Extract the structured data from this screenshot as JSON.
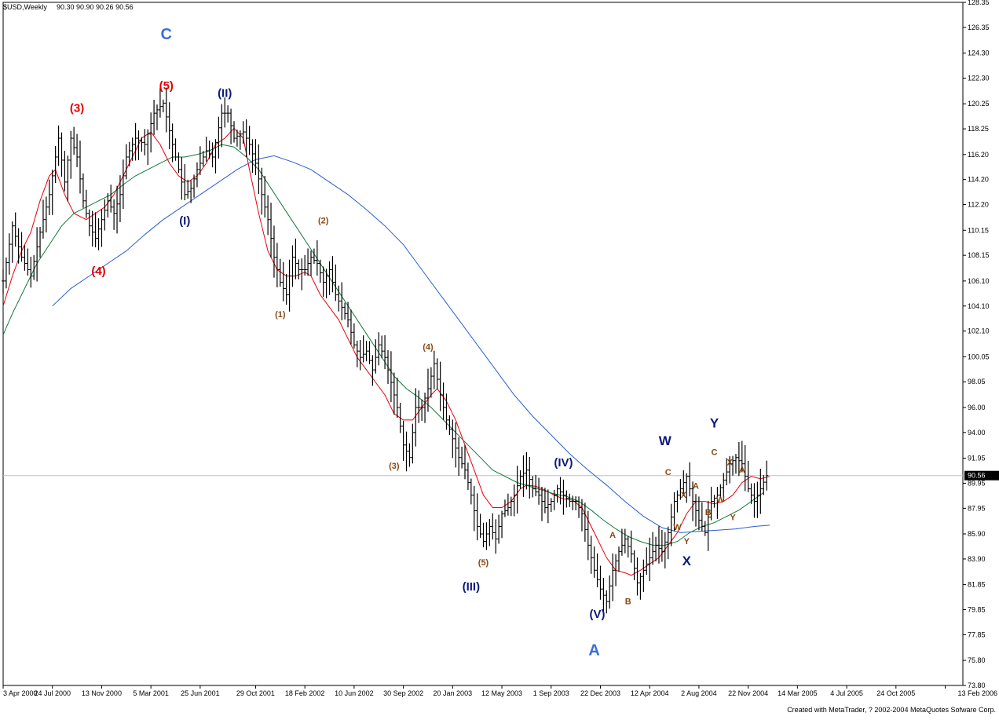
{
  "header": {
    "symbol": "$USD,Weekly",
    "ohlc": "90.30 90.90 90.26 90.56"
  },
  "footer": {
    "credit": "Created with MetaTrader, ? 2002-2004 MetaQuotes Sofware Corp."
  },
  "colors": {
    "bars": "#000000",
    "ma_fast": "#e8000b",
    "ma_mid": "#117a3a",
    "ma_slow": "#2a5fd0",
    "label_red": "#e30000",
    "label_navy": "#0d1a7a",
    "label_brown": "#8b4a12",
    "label_blue": "#3a6fd8",
    "current_price_line": "#c0c0c0"
  },
  "chart_data": {
    "type": "ohlc-bar",
    "timeframe": "Weekly",
    "current_price": 90.56,
    "ylim": [
      73.8,
      128.35
    ],
    "y_ticks": [
      "128.35",
      "126.35",
      "124.30",
      "122.30",
      "120.25",
      "118.25",
      "116.20",
      "114.20",
      "112.20",
      "110.15",
      "108.15",
      "106.10",
      "104.10",
      "102.10",
      "100.05",
      "98.05",
      "96.00",
      "94.00",
      "91.95",
      "89.95",
      "87.95",
      "85.90",
      "83.90",
      "81.85",
      "79.85",
      "77.85",
      "75.80",
      "73.80"
    ],
    "x_ticks": [
      {
        "label": "3 Apr 2000",
        "t": 0
      },
      {
        "label": "24 Jul 2000",
        "t": 16
      },
      {
        "label": "13 Nov 2000",
        "t": 32
      },
      {
        "label": "5 Mar 2001",
        "t": 48
      },
      {
        "label": "25 Jun 2001",
        "t": 64
      },
      {
        "label": "29 Oct 2001",
        "t": 82
      },
      {
        "label": "18 Feb 2002",
        "t": 98
      },
      {
        "label": "10 Jun 2002",
        "t": 114
      },
      {
        "label": "30 Sep 2002",
        "t": 130
      },
      {
        "label": "20 Jan 2003",
        "t": 146
      },
      {
        "label": "12 May 2003",
        "t": 162
      },
      {
        "label": "1 Sep 2003",
        "t": 178
      },
      {
        "label": "22 Dec 2003",
        "t": 194
      },
      {
        "label": "12 Apr 2004",
        "t": 210
      },
      {
        "label": "2 Aug 2004",
        "t": 226
      },
      {
        "label": "22 Nov 2004",
        "t": 242
      },
      {
        "label": "14 Mar 2005",
        "t": 258
      },
      {
        "label": "4 Jul 2005",
        "t": 274
      },
      {
        "label": "24 Oct 2005",
        "t": 290
      },
      {
        "label": "13 Feb 2006",
        "t": 306
      }
    ],
    "close_path": [
      [
        0,
        106.1
      ],
      [
        3,
        110.5
      ],
      [
        6,
        108
      ],
      [
        9,
        106.5
      ],
      [
        12,
        110
      ],
      [
        15,
        113
      ],
      [
        18,
        117.5
      ],
      [
        20,
        114
      ],
      [
        22,
        117.5
      ],
      [
        24,
        116
      ],
      [
        26,
        112.5
      ],
      [
        28,
        110.5
      ],
      [
        30,
        109.5
      ],
      [
        32,
        111
      ],
      [
        34,
        112.5
      ],
      [
        36,
        111.5
      ],
      [
        38,
        113
      ],
      [
        40,
        116
      ],
      [
        43,
        117.5
      ],
      [
        46,
        117
      ],
      [
        49,
        119.5
      ],
      [
        52,
        120.3
      ],
      [
        55,
        117
      ],
      [
        57,
        115
      ],
      [
        59,
        113
      ],
      [
        61,
        113.5
      ],
      [
        63,
        115
      ],
      [
        66,
        116.5
      ],
      [
        68,
        116
      ],
      [
        71,
        119.5
      ],
      [
        73,
        119.5
      ],
      [
        75,
        117.5
      ],
      [
        78,
        118
      ],
      [
        80,
        117
      ],
      [
        82,
        115.5
      ],
      [
        84,
        113
      ],
      [
        86,
        111
      ],
      [
        88,
        108
      ],
      [
        90,
        106
      ],
      [
        92,
        105
      ],
      [
        94,
        108
      ],
      [
        96,
        107
      ],
      [
        98,
        107
      ],
      [
        100,
        108
      ],
      [
        102,
        107.5
      ],
      [
        104,
        106
      ],
      [
        106,
        107
      ],
      [
        108,
        105
      ],
      [
        110,
        104
      ],
      [
        112,
        103
      ],
      [
        114,
        101
      ],
      [
        116,
        100
      ],
      [
        118,
        100.5
      ],
      [
        120,
        99
      ],
      [
        122,
        101
      ],
      [
        124,
        100
      ],
      [
        126,
        98
      ],
      [
        128,
        96
      ],
      [
        130,
        93
      ],
      [
        132,
        92
      ],
      [
        134,
        96
      ],
      [
        136,
        96
      ],
      [
        138,
        97.5
      ],
      [
        140,
        99.5
      ],
      [
        142,
        97
      ],
      [
        144,
        95
      ],
      [
        146,
        93.5
      ],
      [
        148,
        92
      ],
      [
        150,
        91
      ],
      [
        152,
        89
      ],
      [
        154,
        86.5
      ],
      [
        156,
        85.3
      ],
      [
        158,
        86.5
      ],
      [
        160,
        85.5
      ],
      [
        162,
        87.5
      ],
      [
        164,
        88
      ],
      [
        166,
        89
      ],
      [
        168,
        90.5
      ],
      [
        170,
        91
      ],
      [
        172,
        89.5
      ],
      [
        174,
        89
      ],
      [
        176,
        88
      ],
      [
        178,
        88.5
      ],
      [
        180,
        89.5
      ],
      [
        182,
        89
      ],
      [
        184,
        88.5
      ],
      [
        186,
        88.5
      ],
      [
        188,
        87.5
      ],
      [
        190,
        85
      ],
      [
        192,
        83
      ],
      [
        194,
        81.5
      ],
      [
        196,
        80.5
      ],
      [
        198,
        83
      ],
      [
        200,
        84.5
      ],
      [
        202,
        85.5
      ],
      [
        204,
        84.3
      ],
      [
        206,
        82
      ],
      [
        208,
        83
      ],
      [
        210,
        84
      ],
      [
        212,
        85
      ],
      [
        214,
        84.5
      ],
      [
        216,
        86
      ],
      [
        218,
        88.5
      ],
      [
        220,
        89.5
      ],
      [
        222,
        90.5
      ],
      [
        224,
        88.5
      ],
      [
        226,
        87
      ],
      [
        228,
        86
      ],
      [
        230,
        88.5
      ],
      [
        232,
        89
      ],
      [
        234,
        90.2
      ],
      [
        236,
        91.5
      ],
      [
        238,
        92
      ],
      [
        240,
        91.5
      ],
      [
        242,
        89.5
      ],
      [
        244,
        88.5
      ],
      [
        246,
        89.5
      ],
      [
        248,
        90.56
      ]
    ],
    "ma_fast": [
      [
        0,
        104.1
      ],
      [
        3,
        106.5
      ],
      [
        6,
        108.5
      ],
      [
        9,
        110
      ],
      [
        12,
        112.5
      ],
      [
        15,
        114.5
      ],
      [
        17,
        115
      ],
      [
        20,
        113
      ],
      [
        23,
        111.5
      ],
      [
        27,
        111
      ],
      [
        30,
        111.5
      ],
      [
        33,
        112
      ],
      [
        36,
        113
      ],
      [
        39,
        114.5
      ],
      [
        42,
        116
      ],
      [
        45,
        117.5
      ],
      [
        48,
        118
      ],
      [
        51,
        117
      ],
      [
        54,
        115.5
      ],
      [
        57,
        114.5
      ],
      [
        60,
        114
      ],
      [
        63,
        114.5
      ],
      [
        66,
        115.5
      ],
      [
        69,
        117
      ],
      [
        72,
        117.5
      ],
      [
        75,
        118.3
      ],
      [
        78,
        117.5
      ],
      [
        80,
        115
      ],
      [
        83,
        111.5
      ],
      [
        86,
        108.5
      ],
      [
        89,
        107
      ],
      [
        92,
        106.5
      ],
      [
        95,
        106.5
      ],
      [
        98,
        106.8
      ],
      [
        100,
        106.5
      ],
      [
        103,
        105
      ],
      [
        106,
        104
      ],
      [
        109,
        103
      ],
      [
        112,
        101.5
      ],
      [
        115,
        100
      ],
      [
        118,
        99
      ],
      [
        121,
        98
      ],
      [
        124,
        97
      ],
      [
        127,
        95.5
      ],
      [
        130,
        95
      ],
      [
        133,
        95
      ],
      [
        136,
        96
      ],
      [
        139,
        97
      ],
      [
        141,
        97.5
      ],
      [
        144,
        96.5
      ],
      [
        147,
        95
      ],
      [
        150,
        93
      ],
      [
        153,
        91
      ],
      [
        156,
        89
      ],
      [
        159,
        88
      ],
      [
        162,
        88
      ],
      [
        165,
        88.5
      ],
      [
        168,
        89.5
      ],
      [
        170,
        89.8
      ],
      [
        173,
        89.7
      ],
      [
        176,
        89.4
      ],
      [
        179,
        89
      ],
      [
        182,
        88.7
      ],
      [
        185,
        88.6
      ],
      [
        188,
        88
      ],
      [
        190,
        87
      ],
      [
        193,
        85.5
      ],
      [
        196,
        84
      ],
      [
        199,
        83
      ],
      [
        202,
        82.8
      ],
      [
        204,
        82.6
      ],
      [
        207,
        83
      ],
      [
        210,
        83.5
      ],
      [
        213,
        84
      ],
      [
        216,
        85
      ],
      [
        219,
        86
      ],
      [
        222,
        87.5
      ],
      [
        225,
        88.5
      ],
      [
        228,
        88.5
      ],
      [
        231,
        88.3
      ],
      [
        234,
        88.5
      ],
      [
        237,
        89
      ],
      [
        240,
        90
      ],
      [
        243,
        90.5
      ],
      [
        246,
        90.3
      ],
      [
        249,
        90.5
      ]
    ],
    "ma_mid": [
      [
        0,
        101.8
      ],
      [
        3,
        103.5
      ],
      [
        7,
        105.5
      ],
      [
        11,
        107.5
      ],
      [
        15,
        109
      ],
      [
        19,
        110.5
      ],
      [
        23,
        111.5
      ],
      [
        27,
        112
      ],
      [
        31,
        112.5
      ],
      [
        35,
        113
      ],
      [
        39,
        113.8
      ],
      [
        43,
        114.5
      ],
      [
        47,
        115
      ],
      [
        51,
        115.5
      ],
      [
        55,
        116
      ],
      [
        59,
        116
      ],
      [
        63,
        116.2
      ],
      [
        67,
        116.5
      ],
      [
        71,
        117
      ],
      [
        75,
        116.8
      ],
      [
        79,
        116
      ],
      [
        83,
        115
      ],
      [
        87,
        113.5
      ],
      [
        91,
        112
      ],
      [
        95,
        110.5
      ],
      [
        99,
        109
      ],
      [
        103,
        107.5
      ],
      [
        107,
        106
      ],
      [
        111,
        104.5
      ],
      [
        115,
        103
      ],
      [
        119,
        101.5
      ],
      [
        123,
        100
      ],
      [
        127,
        98.5
      ],
      [
        131,
        97.5
      ],
      [
        135,
        96.8
      ],
      [
        139,
        96
      ],
      [
        143,
        95
      ],
      [
        147,
        94
      ],
      [
        151,
        93
      ],
      [
        155,
        92
      ],
      [
        159,
        91
      ],
      [
        163,
        90.5
      ],
      [
        167,
        90
      ],
      [
        171,
        89.7
      ],
      [
        175,
        89.4
      ],
      [
        179,
        89.1
      ],
      [
        183,
        88.9
      ],
      [
        187,
        88.5
      ],
      [
        191,
        87.8
      ],
      [
        195,
        87
      ],
      [
        199,
        86.3
      ],
      [
        203,
        85.7
      ],
      [
        207,
        85.3
      ],
      [
        211,
        85
      ],
      [
        215,
        85
      ],
      [
        219,
        85.3
      ],
      [
        223,
        86
      ],
      [
        227,
        86.5
      ],
      [
        231,
        86.8
      ],
      [
        235,
        87.3
      ],
      [
        239,
        87.8
      ],
      [
        243,
        88.5
      ],
      [
        247,
        89.2
      ]
    ],
    "ma_slow": [
      [
        16,
        104.1
      ],
      [
        22,
        105.5
      ],
      [
        28,
        106.5
      ],
      [
        34,
        107.5
      ],
      [
        40,
        108.5
      ],
      [
        46,
        109.8
      ],
      [
        52,
        111
      ],
      [
        58,
        112
      ],
      [
        64,
        113
      ],
      [
        70,
        114
      ],
      [
        76,
        115
      ],
      [
        82,
        115.8
      ],
      [
        88,
        116.1
      ],
      [
        94,
        115.6
      ],
      [
        100,
        115
      ],
      [
        106,
        114
      ],
      [
        112,
        113
      ],
      [
        118,
        111.8
      ],
      [
        124,
        110.5
      ],
      [
        130,
        109
      ],
      [
        136,
        107
      ],
      [
        142,
        105
      ],
      [
        148,
        103
      ],
      [
        154,
        101
      ],
      [
        160,
        99
      ],
      [
        166,
        97
      ],
      [
        172,
        95.3
      ],
      [
        178,
        93.8
      ],
      [
        184,
        92.3
      ],
      [
        190,
        91
      ],
      [
        196,
        89.8
      ],
      [
        202,
        88.5
      ],
      [
        208,
        87.3
      ],
      [
        214,
        86.4
      ],
      [
        220,
        86
      ],
      [
        226,
        86.1
      ],
      [
        232,
        86.2
      ],
      [
        238,
        86.3
      ],
      [
        244,
        86.5
      ],
      [
        249,
        86.6
      ]
    ],
    "series": [
      {
        "name": "",
        "source": "bars"
      }
    ],
    "annotations": [
      {
        "text": "C",
        "t": 53,
        "price": 125.4,
        "color": "label_blue",
        "size": 20
      },
      {
        "text": "(5)",
        "t": 53,
        "price": 121.4,
        "color": "label_red",
        "size": 15
      },
      {
        "text": "(3)",
        "t": 24,
        "price": 119.6,
        "color": "label_red",
        "size": 15
      },
      {
        "text": "(4)",
        "t": 31,
        "price": 106.6,
        "color": "label_red",
        "size": 15
      },
      {
        "text": "(II)",
        "t": 72,
        "price": 120.8,
        "color": "label_navy",
        "size": 15
      },
      {
        "text": "(I)",
        "t": 59,
        "price": 110.6,
        "color": "label_navy",
        "size": 15
      },
      {
        "text": "(1)",
        "t": 90,
        "price": 103.2,
        "color": "label_brown",
        "size": 11
      },
      {
        "text": "(2)",
        "t": 104,
        "price": 110.7,
        "color": "label_brown",
        "size": 11
      },
      {
        "text": "(3)",
        "t": 127,
        "price": 91.1,
        "color": "label_brown",
        "size": 11
      },
      {
        "text": "(4)",
        "t": 138,
        "price": 100.6,
        "color": "label_brown",
        "size": 11
      },
      {
        "text": "(5)",
        "t": 156,
        "price": 83.4,
        "color": "label_brown",
        "size": 11
      },
      {
        "text": "(III)",
        "t": 152,
        "price": 81.4,
        "color": "label_navy",
        "size": 15
      },
      {
        "text": "(IV)",
        "t": 182,
        "price": 91.3,
        "color": "label_navy",
        "size": 15
      },
      {
        "text": "(V)",
        "t": 193,
        "price": 79.2,
        "color": "label_navy",
        "size": 15
      },
      {
        "text": "A",
        "t": 192,
        "price": 76.2,
        "color": "label_blue",
        "size": 20
      },
      {
        "text": "A",
        "t": 198,
        "price": 85.6,
        "color": "label_brown",
        "size": 11
      },
      {
        "text": "B",
        "t": 203,
        "price": 80.3,
        "color": "label_brown",
        "size": 11
      },
      {
        "text": "W",
        "t": 215,
        "price": 93.0,
        "color": "label_navy",
        "size": 17
      },
      {
        "text": "C",
        "t": 216,
        "price": 90.6,
        "color": "label_brown",
        "size": 11
      },
      {
        "text": "X",
        "t": 221,
        "price": 88.8,
        "color": "label_brown",
        "size": 11
      },
      {
        "text": "W",
        "t": 219,
        "price": 86.2,
        "color": "label_brown",
        "size": 11
      },
      {
        "text": "Y",
        "t": 222,
        "price": 85.1,
        "color": "label_brown",
        "size": 11
      },
      {
        "text": "X",
        "t": 222,
        "price": 83.4,
        "color": "label_navy",
        "size": 17
      },
      {
        "text": "A",
        "t": 225,
        "price": 89.5,
        "color": "label_brown",
        "size": 11
      },
      {
        "text": "B",
        "t": 229,
        "price": 87.4,
        "color": "label_brown",
        "size": 11
      },
      {
        "text": "Y",
        "t": 231,
        "price": 94.4,
        "color": "label_navy",
        "size": 17
      },
      {
        "text": "C",
        "t": 231,
        "price": 92.2,
        "color": "label_brown",
        "size": 11
      },
      {
        "text": "X",
        "t": 236,
        "price": 91.4,
        "color": "label_brown",
        "size": 11
      },
      {
        "text": "W",
        "t": 233,
        "price": 88.4,
        "color": "label_brown",
        "size": 11
      },
      {
        "text": "Y",
        "t": 237,
        "price": 87.0,
        "color": "label_brown",
        "size": 11
      },
      {
        "text": "A",
        "t": 240,
        "price": 90.8,
        "color": "label_brown",
        "size": 11
      }
    ]
  }
}
